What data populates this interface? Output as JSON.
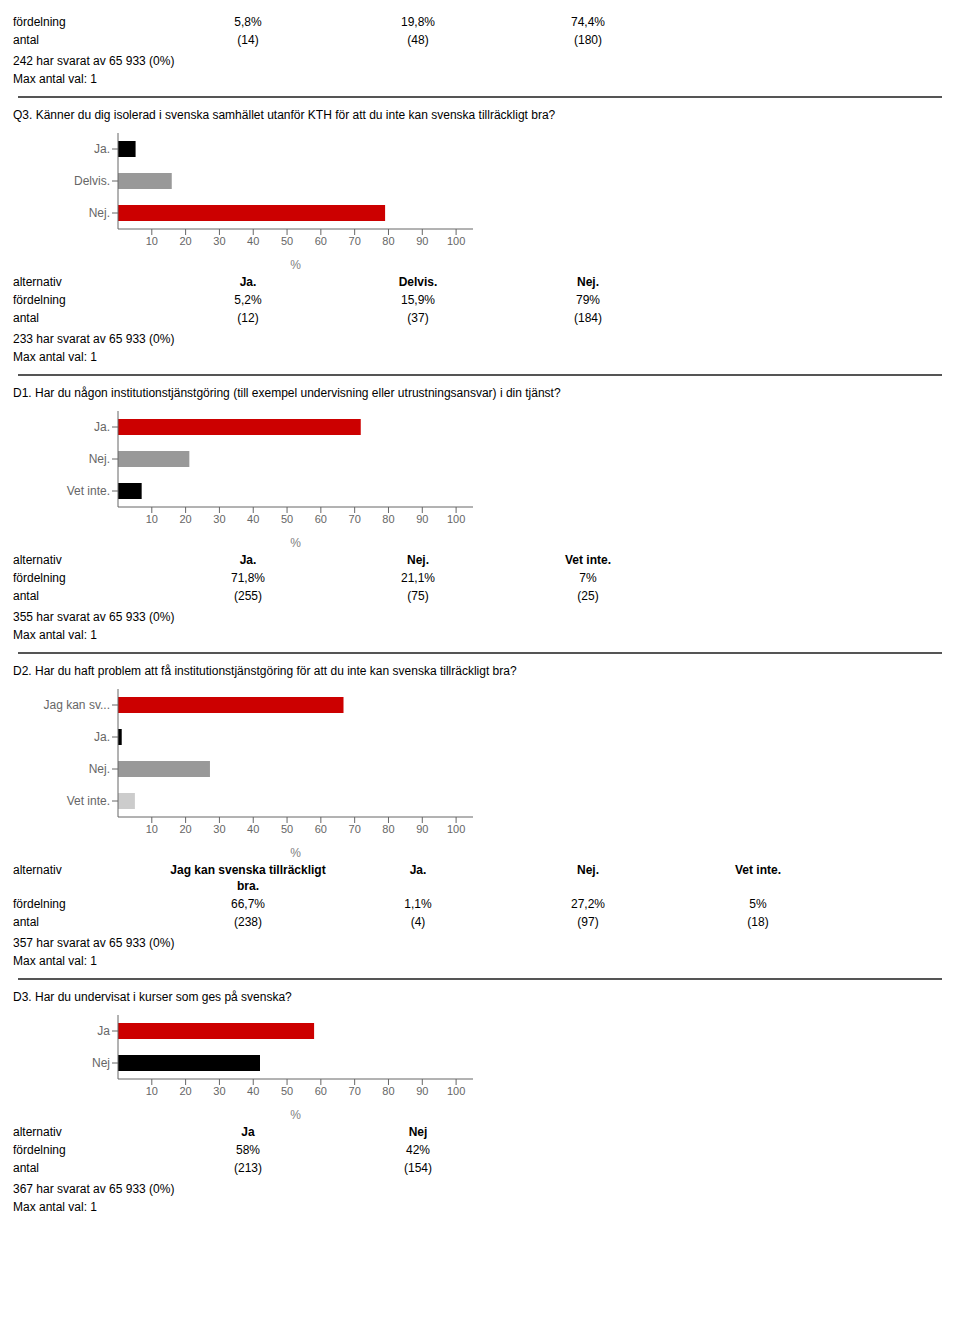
{
  "chart_data": [
    {
      "type": "table",
      "table_rows": [
        "fördelning",
        "antal"
      ],
      "values": [
        5.8,
        19.8,
        74.4
      ],
      "value_labels": [
        "5,8%",
        "19,8%",
        "74,4%"
      ],
      "counts": [
        14,
        48,
        180
      ],
      "count_labels": [
        "(14)",
        "(48)",
        "(180)"
      ],
      "annotations": [
        "242 har svarat av 65 933 (0%)",
        "Max antal val: 1"
      ]
    },
    {
      "type": "bar",
      "orientation": "horizontal",
      "title": "Q3. Känner du dig isolerad i svenska samhället utanför KTH för att du inte kan svenska tillräckligt bra?",
      "categories": [
        "Ja.",
        "Delvis.",
        "Nej."
      ],
      "values": [
        5.2,
        15.9,
        79.0
      ],
      "colors": [
        "#000000",
        "#999999",
        "#cc0000"
      ],
      "xlim": [
        0,
        105
      ],
      "xticks": [
        10,
        20,
        30,
        40,
        50,
        60,
        70,
        80,
        90,
        100
      ],
      "xlabel": "%",
      "grid": false,
      "table_rows": [
        "alternativ",
        "fördelning",
        "antal"
      ],
      "table_headers": [
        "Ja.",
        "Delvis.",
        "Nej."
      ],
      "value_labels": [
        "5,2%",
        "15,9%",
        "79%"
      ],
      "counts": [
        12,
        37,
        184
      ],
      "count_labels": [
        "(12)",
        "(37)",
        "(184)"
      ],
      "annotations": [
        "233 har svarat av 65 933 (0%)",
        "Max antal val: 1"
      ]
    },
    {
      "type": "bar",
      "orientation": "horizontal",
      "title": "D1. Har du någon institutionstjänstgöring (till exempel undervisning eller utrustningsansvar) i din tjänst?",
      "categories": [
        "Ja.",
        "Nej.",
        "Vet inte."
      ],
      "values": [
        71.8,
        21.1,
        7.0
      ],
      "colors": [
        "#cc0000",
        "#999999",
        "#000000"
      ],
      "xlim": [
        0,
        105
      ],
      "xticks": [
        10,
        20,
        30,
        40,
        50,
        60,
        70,
        80,
        90,
        100
      ],
      "xlabel": "%",
      "grid": false,
      "table_rows": [
        "alternativ",
        "fördelning",
        "antal"
      ],
      "table_headers": [
        "Ja.",
        "Nej.",
        "Vet inte."
      ],
      "value_labels": [
        "71,8%",
        "21,1%",
        "7%"
      ],
      "counts": [
        255,
        75,
        25
      ],
      "count_labels": [
        "(255)",
        "(75)",
        "(25)"
      ],
      "annotations": [
        "355 har svarat av 65 933 (0%)",
        "Max antal val: 1"
      ]
    },
    {
      "type": "bar",
      "orientation": "horizontal",
      "title": "D2. Har du haft problem att få institutionstjänstgöring för att du inte kan svenska tillräckligt bra?",
      "categories": [
        "Jag kan sv...",
        "Ja.",
        "Nej.",
        "Vet inte."
      ],
      "values": [
        66.7,
        1.1,
        27.2,
        5.0
      ],
      "colors": [
        "#cc0000",
        "#000000",
        "#999999",
        "#cccccc"
      ],
      "xlim": [
        0,
        105
      ],
      "xticks": [
        10,
        20,
        30,
        40,
        50,
        60,
        70,
        80,
        90,
        100
      ],
      "xlabel": "%",
      "grid": false,
      "table_rows": [
        "alternativ",
        "fördelning",
        "antal"
      ],
      "table_headers": [
        "Jag kan svenska tillräckligt\nbra.",
        "Ja.",
        "Nej.",
        "Vet inte."
      ],
      "value_labels": [
        "66,7%",
        "1,1%",
        "27,2%",
        "5%"
      ],
      "counts": [
        238,
        4,
        97,
        18
      ],
      "count_labels": [
        "(238)",
        "(4)",
        "(97)",
        "(18)"
      ],
      "annotations": [
        "357 har svarat av 65 933 (0%)",
        "Max antal val: 1"
      ]
    },
    {
      "type": "bar",
      "orientation": "horizontal",
      "title": "D3. Har du undervisat i kurser som ges på svenska?",
      "categories": [
        "Ja",
        "Nej"
      ],
      "values": [
        58.0,
        42.0
      ],
      "colors": [
        "#cc0000",
        "#000000"
      ],
      "xlim": [
        0,
        105
      ],
      "xticks": [
        10,
        20,
        30,
        40,
        50,
        60,
        70,
        80,
        90,
        100
      ],
      "xlabel": "%",
      "grid": false,
      "table_rows": [
        "alternativ",
        "fördelning",
        "antal"
      ],
      "table_headers": [
        "Ja",
        "Nej"
      ],
      "value_labels": [
        "58%",
        "42%"
      ],
      "counts": [
        213,
        154
      ],
      "count_labels": [
        "(213)",
        "(154)"
      ],
      "annotations": [
        "367 har svarat av 65 933 (0%)",
        "Max antal val: 1"
      ]
    }
  ]
}
